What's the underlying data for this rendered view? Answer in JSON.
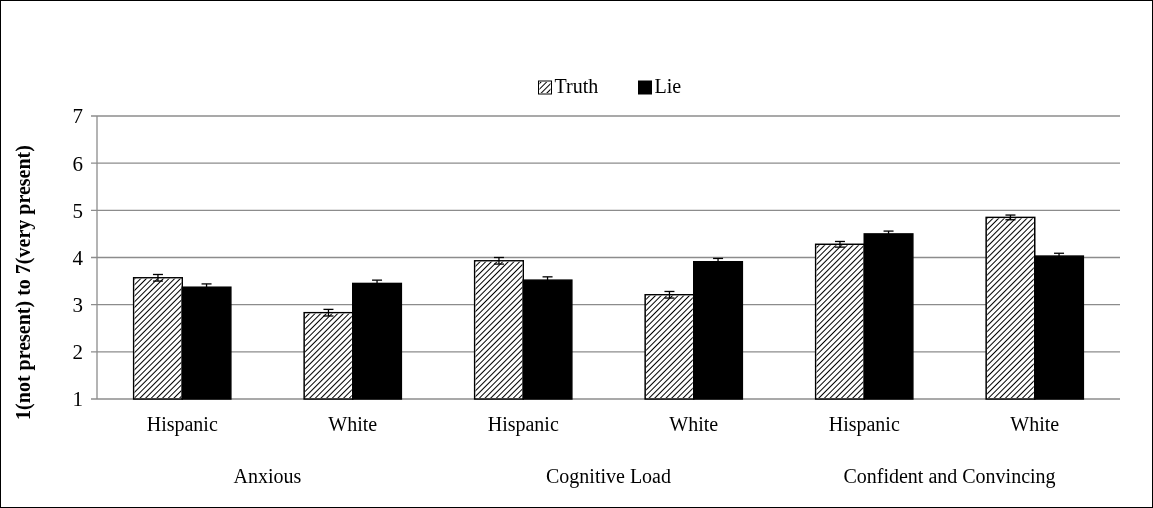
{
  "chart_data": {
    "type": "bar",
    "ylabel": "1(not present) to 7(very present)",
    "categories": [
      "Hispanic",
      "White",
      "Hispanic",
      "White",
      "Hispanic",
      "White"
    ],
    "series": [
      {
        "name": "Truth",
        "color": "#ffffff",
        "values": [
          3.57,
          2.83,
          3.93,
          3.21,
          4.28,
          4.85
        ],
        "errors": [
          0.07,
          0.07,
          0.07,
          0.07,
          0.06,
          0.05
        ]
      },
      {
        "name": "Lie",
        "color": "#000000",
        "values": [
          3.37,
          3.45,
          3.52,
          3.91,
          4.5,
          4.03
        ],
        "errors": [
          0.07,
          0.07,
          0.07,
          0.07,
          0.06,
          0.06
        ]
      }
    ],
    "annotations": [
      "Anxious",
      "Cognitive Load",
      "Confident and Convincing"
    ],
    "ylim": [
      1,
      7
    ],
    "yticks": [
      1,
      2,
      3,
      4,
      5,
      6,
      7
    ],
    "grid": "y",
    "legend": "top"
  }
}
